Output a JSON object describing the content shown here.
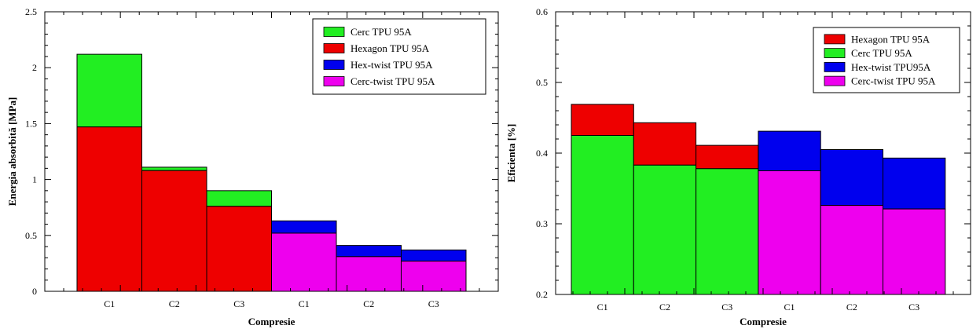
{
  "chart_data": [
    {
      "type": "bar",
      "stacking": "overlapped",
      "xlabel": "Compresie",
      "ylabel": "Energia absorbită [MPa]",
      "ylim": [
        0,
        2.5
      ],
      "yticks": [
        "0",
        "0.5",
        "1",
        "1.5",
        "2",
        "2.5"
      ],
      "categories": [
        "C1",
        "C2",
        "C3",
        "C1",
        "C2",
        "C3"
      ],
      "grid": false,
      "legend_position": "top-right",
      "legend": [
        {
          "name": "Cerc TPU 95A",
          "color": "#22ee22"
        },
        {
          "name": "Hexagon TPU 95A",
          "color": "#ee0000"
        },
        {
          "name": "Hex-twist TPU 95A",
          "color": "#0000ee"
        },
        {
          "name": "Cerc-twist TPU 95A",
          "color": "#ee00ee"
        }
      ],
      "bars": [
        {
          "category_index": 0,
          "top": 2.12,
          "top_series": "Cerc TPU 95A",
          "bottom": 1.47,
          "bottom_series": "Hexagon TPU 95A"
        },
        {
          "category_index": 1,
          "top": 1.11,
          "top_series": "Cerc TPU 95A",
          "bottom": 1.08,
          "bottom_series": "Hexagon TPU 95A"
        },
        {
          "category_index": 2,
          "top": 0.9,
          "top_series": "Cerc TPU 95A",
          "bottom": 0.76,
          "bottom_series": "Hexagon TPU 95A"
        },
        {
          "category_index": 3,
          "top": 0.63,
          "top_series": "Hex-twist TPU 95A",
          "bottom": 0.52,
          "bottom_series": "Cerc-twist TPU 95A"
        },
        {
          "category_index": 4,
          "top": 0.41,
          "top_series": "Hex-twist TPU 95A",
          "bottom": 0.31,
          "bottom_series": "Cerc-twist TPU 95A"
        },
        {
          "category_index": 5,
          "top": 0.37,
          "top_series": "Hex-twist TPU 95A",
          "bottom": 0.27,
          "bottom_series": "Cerc-twist TPU 95A"
        }
      ]
    },
    {
      "type": "bar",
      "stacking": "overlapped",
      "xlabel": "Compresie",
      "ylabel": "Eficienta [%]",
      "ylim": [
        0.2,
        0.6
      ],
      "yticks": [
        "0.2",
        "0.3",
        "0.4",
        "0.5",
        "0.6"
      ],
      "categories": [
        "C1",
        "C2",
        "C3",
        "C1",
        "C2",
        "C3"
      ],
      "grid": false,
      "legend_position": "top-right",
      "legend": [
        {
          "name": "Hexagon TPU 95A",
          "color": "#ee0000"
        },
        {
          "name": "Cerc TPU 95A",
          "color": "#22ee22"
        },
        {
          "name": "Hex-twist TPU95A",
          "color": "#0000ee"
        },
        {
          "name": "Cerc-twist TPU 95A",
          "color": "#ee00ee"
        }
      ],
      "bars": [
        {
          "category_index": 0,
          "top": 0.469,
          "top_series": "Hexagon TPU 95A",
          "bottom": 0.425,
          "bottom_series": "Cerc TPU 95A"
        },
        {
          "category_index": 1,
          "top": 0.443,
          "top_series": "Hexagon TPU 95A",
          "bottom": 0.383,
          "bottom_series": "Cerc TPU 95A"
        },
        {
          "category_index": 2,
          "top": 0.411,
          "top_series": "Hexagon TPU 95A",
          "bottom": 0.378,
          "bottom_series": "Cerc TPU 95A"
        },
        {
          "category_index": 3,
          "top": 0.431,
          "top_series": "Hex-twist TPU95A",
          "bottom": 0.375,
          "bottom_series": "Cerc-twist TPU 95A"
        },
        {
          "category_index": 4,
          "top": 0.405,
          "top_series": "Hex-twist TPU95A",
          "bottom": 0.326,
          "bottom_series": "Cerc-twist TPU 95A"
        },
        {
          "category_index": 5,
          "top": 0.393,
          "top_series": "Hex-twist TPU95A",
          "bottom": 0.321,
          "bottom_series": "Cerc-twist TPU 95A"
        }
      ]
    }
  ]
}
